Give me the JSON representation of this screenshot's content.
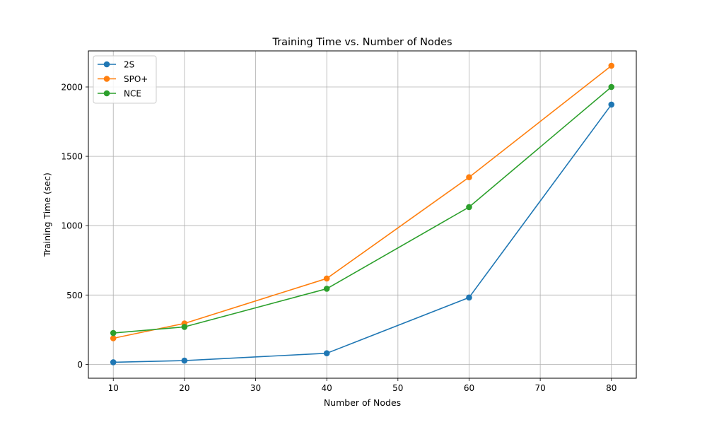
{
  "chart_data": {
    "type": "line",
    "title": "Training Time vs. Number of Nodes",
    "xlabel": "Number of Nodes",
    "ylabel": "Training Time (sec)",
    "xlim": [
      6.5,
      83.5
    ],
    "ylim": [
      -100,
      2260
    ],
    "x_ticks": [
      10,
      20,
      30,
      40,
      50,
      60,
      70,
      80
    ],
    "y_ticks": [
      0,
      500,
      1000,
      1500,
      2000
    ],
    "grid": true,
    "legend_position": "upper-left",
    "x": [
      10,
      20,
      40,
      60,
      80
    ],
    "series": [
      {
        "name": "2S",
        "color": "#1f77b4",
        "values": [
          15,
          27,
          80,
          482,
          1873
        ]
      },
      {
        "name": "SPO+",
        "color": "#ff7f0e",
        "values": [
          188,
          295,
          619,
          1349,
          2153
        ]
      },
      {
        "name": "NCE",
        "color": "#2ca02c",
        "values": [
          226,
          270,
          545,
          1134,
          2000
        ]
      }
    ]
  }
}
